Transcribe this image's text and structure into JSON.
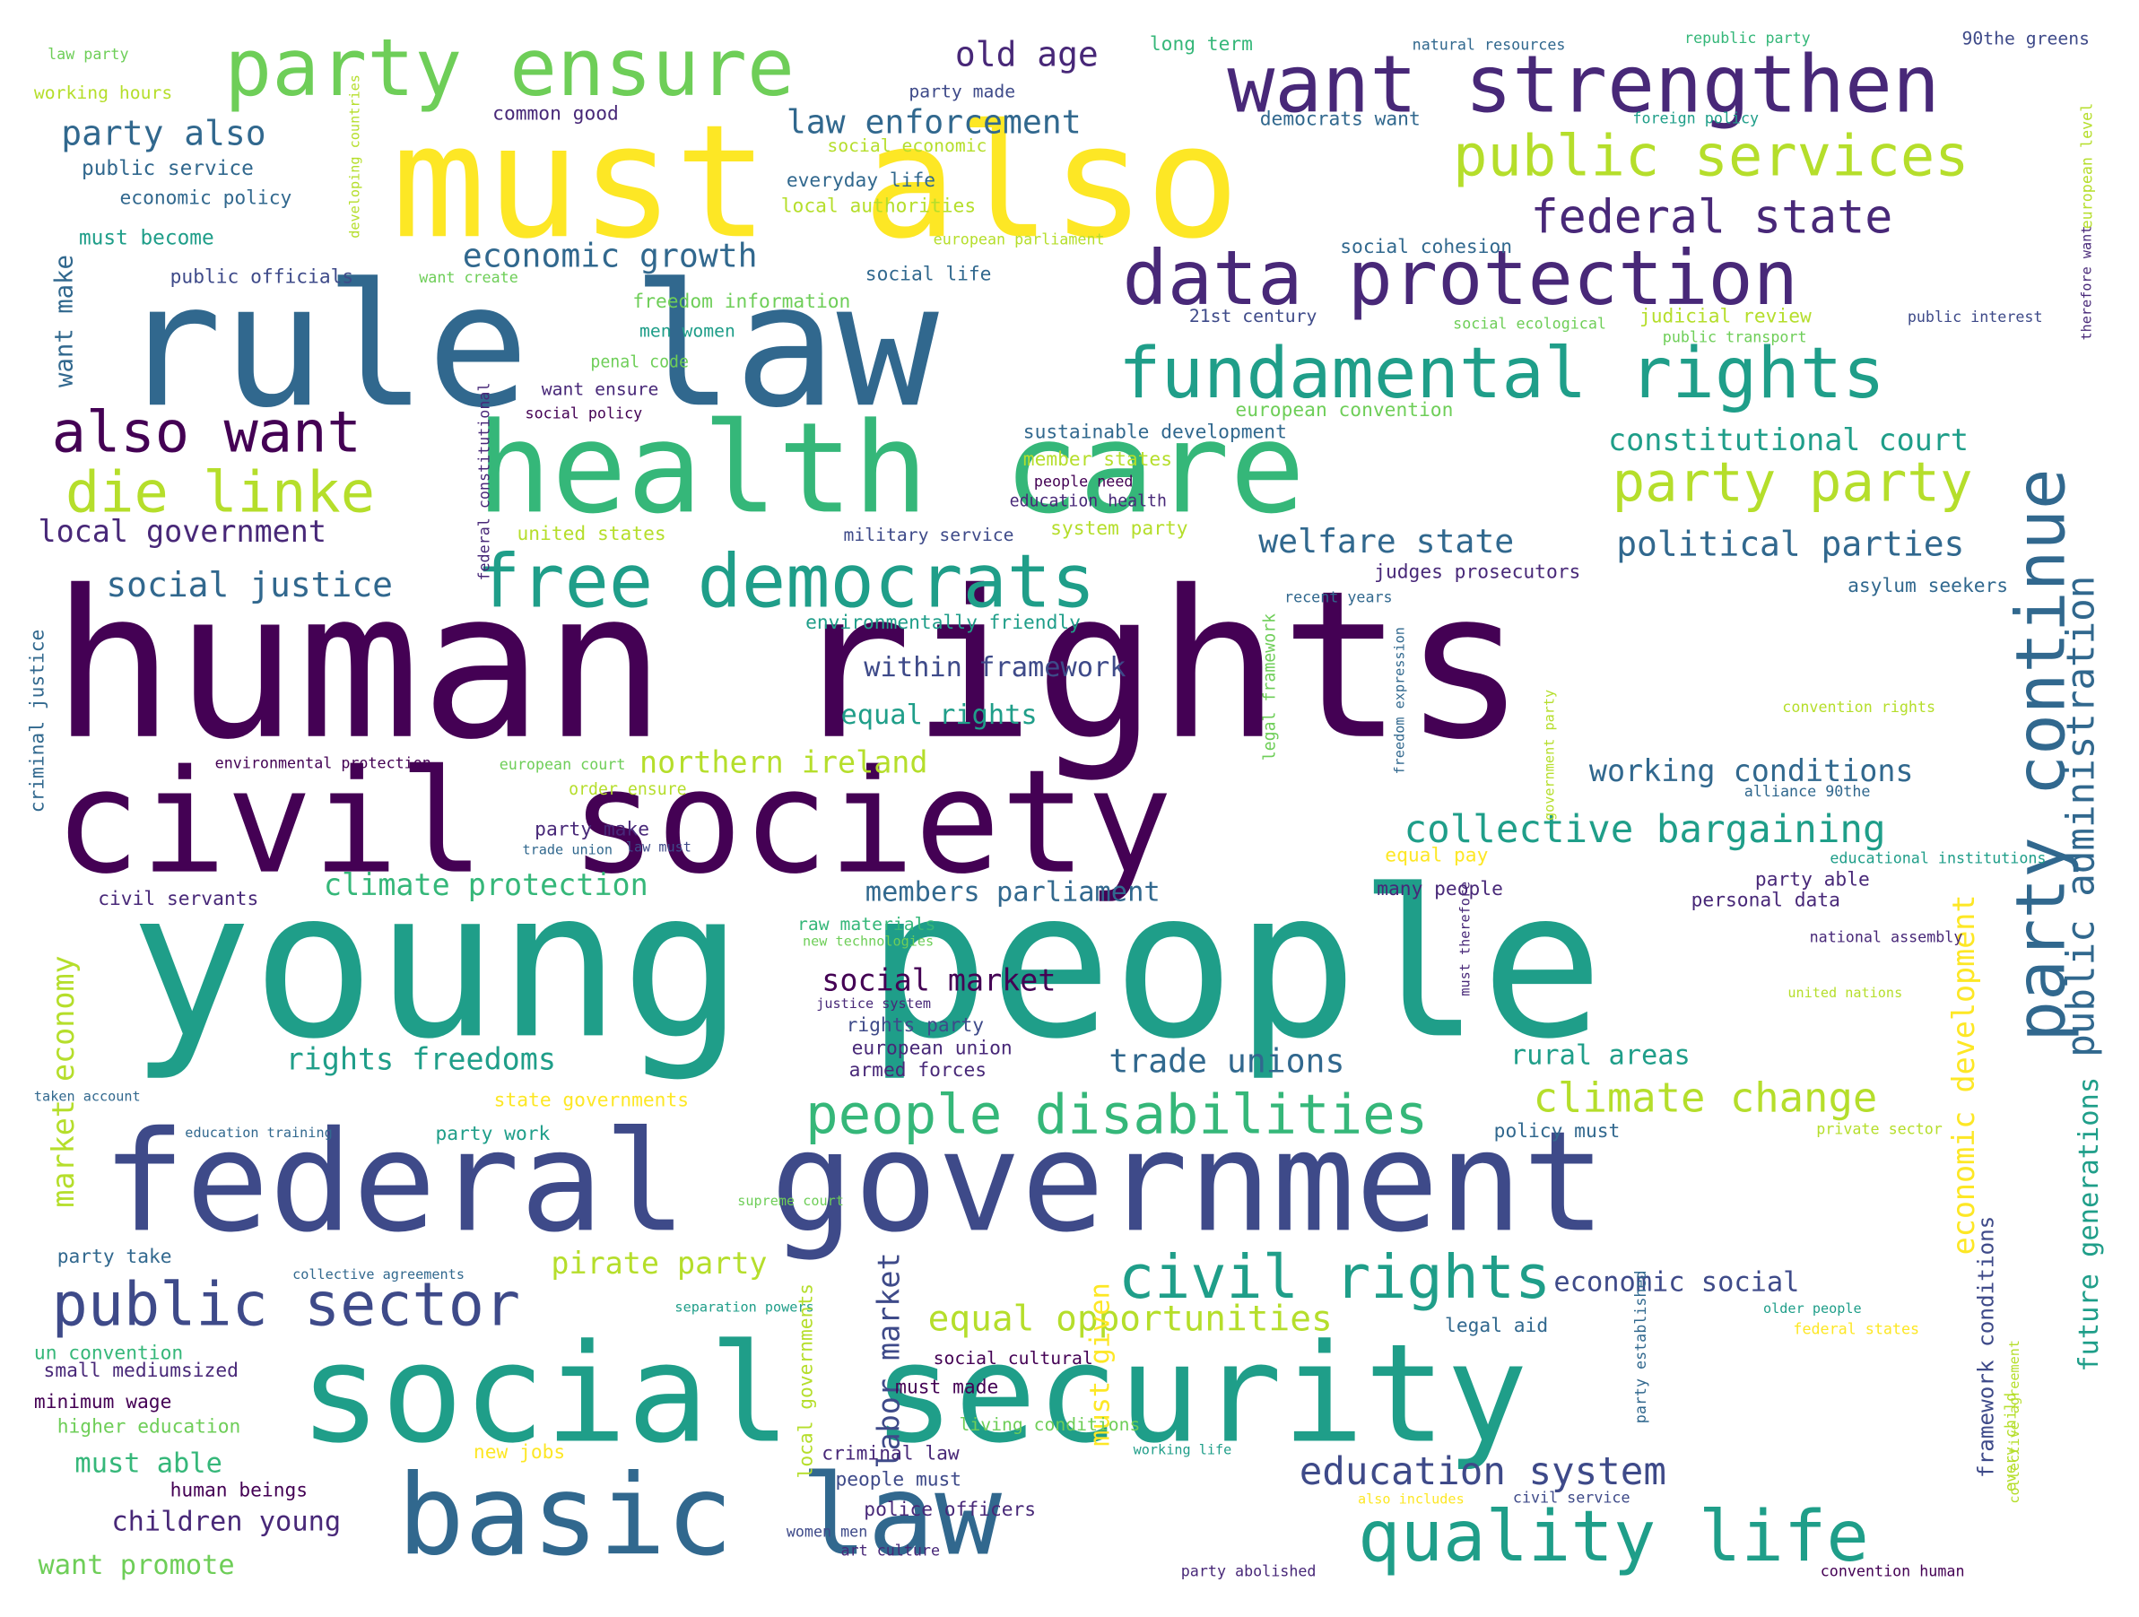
{
  "word_cloud": {
    "colors": {
      "purple": "#440154",
      "indigo": "#482878",
      "blue": "#3e4a89",
      "steel": "#31688e",
      "teal": "#26828e",
      "sea": "#1f9e89",
      "green": "#35b779",
      "lime": "#6ece58",
      "yellowgreen": "#b5de2b",
      "yellow": "#fde725"
    },
    "words": [
      "human rights",
      "young people",
      "civil society",
      "rule law",
      "must also",
      "federal government",
      "social security",
      "health care",
      "basic law",
      "want strengthen",
      "party ensure",
      "data protection",
      "fundamental rights",
      "free democrats",
      "quality life",
      "public services",
      "party continue",
      "civil rights",
      "people disabilities",
      "public sector",
      "die linke",
      "also want",
      "party party",
      "federal state",
      "collective bargaining",
      "climate change",
      "education system",
      "equal opportunities",
      "public administration",
      "old age",
      "party also",
      "law enforcement",
      "economic growth",
      "social justice",
      "local government",
      "welfare state",
      "political parties",
      "constitutional court",
      "working conditions",
      "climate protection",
      "members parliament",
      "trade unions",
      "rights freedoms",
      "rural areas",
      "economic development",
      "market economy",
      "labor market",
      "pirate party",
      "future generations",
      "framework conditions",
      "northern ireland",
      "within framework",
      "equal rights",
      "social market",
      "must able",
      "children young",
      "want promote",
      "economic social",
      "must given",
      "want make",
      "long term",
      "natural resources",
      "republic party",
      "90the greens",
      "law party",
      "working hours",
      "common good",
      "party made",
      "democrats want",
      "social economic",
      "everyday life",
      "local authorities",
      "foreign policy",
      "public service",
      "economic policy",
      "must become",
      "public officials",
      "want create",
      "freedom information",
      "social life",
      "social cohesion",
      "men women",
      "21st century",
      "social ecological",
      "judicial review",
      "public transport",
      "public interest",
      "penal code",
      "want ensure",
      "social policy",
      "european convention",
      "sustainable development",
      "member states",
      "people need",
      "education health",
      "military service",
      "system party",
      "united states",
      "judges prosecutors",
      "asylum seekers",
      "recent years",
      "environmentally friendly",
      "environmental protection",
      "european court",
      "order ensure",
      "party make",
      "trade union",
      "law must",
      "equal pay",
      "educational institutions",
      "party able",
      "civil servants",
      "many people",
      "personal data",
      "raw materials",
      "new technologies",
      "national assembly",
      "united nations",
      "justice system",
      "rights party",
      "european union",
      "armed forces",
      "taken account",
      "state governments",
      "education training",
      "party work",
      "policy must",
      "private sector",
      "supreme court",
      "party take",
      "collective agreements",
      "separation powers",
      "legal aid",
      "older people",
      "federal states",
      "un convention",
      "small mediumsized",
      "social cultural",
      "must made",
      "minimum wage",
      "higher education",
      "living conditions",
      "new jobs",
      "criminal law",
      "working life",
      "people must",
      "human beings",
      "also includes",
      "civil service",
      "police officers",
      "women men",
      "art culture",
      "party abolished",
      "convention human",
      "federal constitutional",
      "criminal justice",
      "developing countries",
      "european level",
      "therefore want",
      "every child",
      "collective agreement",
      "party established",
      "local governments",
      "must therefore",
      "freedom expression",
      "legal framework",
      "government party",
      "convention rights",
      "alliance 90the",
      "european parliament",
      "put end"
    ]
  }
}
